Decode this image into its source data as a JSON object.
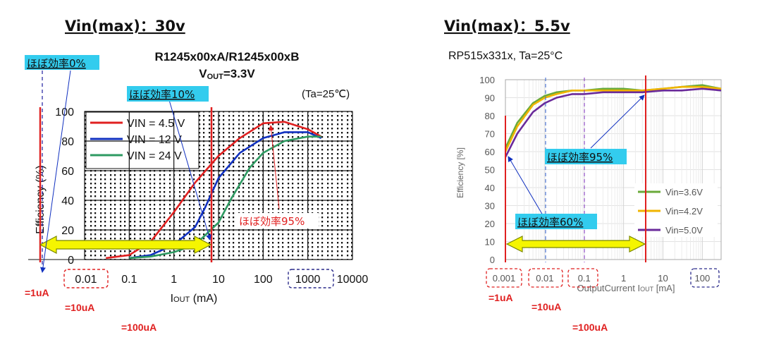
{
  "left": {
    "heading": "Vin(max)：30v",
    "title_line1": "R1245x00xA/R1245x00xB",
    "title_line2_prefix": "V",
    "title_line2_sub": "OUT",
    "title_line2_suffix": "=3.3V",
    "condition": "(Ta=25℃)",
    "label_0pct": "ほぼ効率0%",
    "label_10pct": "ほぼ効率10%",
    "label_95pct": "ほぼ効率95%",
    "note_1uA": "=1uA",
    "note_10uA": "=10uA",
    "note_100uA": "=100uA"
  },
  "right": {
    "heading": "Vin(max)：5.5v",
    "title": "RP515x331x, Ta=25°C",
    "label_95pct": "ほぼ効率95%",
    "label_60pct": "ほぼ効率60%",
    "note_1uA": "=1uA",
    "note_10uA": "=10uA",
    "note_100uA": "=100uA"
  },
  "colors": {
    "red": "#e02020",
    "blue": "#1030c0",
    "green": "#2e9a62",
    "cyan_label": "#33ccee",
    "arrow_fill": "#f5f500",
    "arrow_stroke": "#7a8800",
    "r_green": "#6aaa3a",
    "r_yellow": "#f0b400",
    "r_purple": "#6a2a9a"
  },
  "chart_data": [
    {
      "type": "line",
      "xscale": "log",
      "xlim": [
        0.01,
        10000
      ],
      "ylim": [
        0,
        100
      ],
      "xlabel_prefix": "I",
      "xlabel_sub": "OUT",
      "xlabel_suffix": " (mA)",
      "ylabel": "Efficiency (%)",
      "x_ticks": [
        "0.01",
        "0.1",
        "1",
        "10",
        "100",
        "1000",
        "10000"
      ],
      "x_tick_values": [
        0.01,
        0.1,
        1,
        10,
        100,
        1000,
        10000
      ],
      "y_ticks": [
        0,
        20,
        40,
        60,
        80,
        100
      ],
      "legend_position": "top-left",
      "series": [
        {
          "name": "VIN =  4.5 V",
          "color": "#e02020",
          "x": [
            0.03,
            0.1,
            0.3,
            1,
            3,
            10,
            30,
            100,
            300,
            1000,
            2000
          ],
          "y": [
            1,
            3,
            12,
            32,
            52,
            70,
            82,
            92,
            93,
            88,
            83
          ]
        },
        {
          "name": "VIN =  12 V",
          "color": "#1030c0",
          "x": [
            0.1,
            0.3,
            1,
            3,
            5,
            10,
            30,
            100,
            300,
            1000,
            2000
          ],
          "y": [
            1,
            3,
            10,
            22,
            35,
            55,
            72,
            82,
            86,
            86,
            82
          ]
        },
        {
          "name": "VIN =  24 V",
          "color": "#2e9a62",
          "x": [
            0.1,
            0.3,
            1,
            3,
            10,
            20,
            50,
            100,
            300,
            1000,
            2000
          ],
          "y": [
            1,
            2,
            5,
            10,
            25,
            42,
            62,
            72,
            80,
            83,
            83
          ]
        }
      ]
    },
    {
      "type": "line",
      "xscale": "log",
      "xlim": [
        0.001,
        300
      ],
      "ylim": [
        0,
        100
      ],
      "xlabel_prefix": "OutputCurrent  I",
      "xlabel_sub": "OUT",
      "xlabel_suffix": " [mA]",
      "ylabel": "Efficiency [%]",
      "x_ticks": [
        "0.001",
        "0.01",
        "0.1",
        "1",
        "10",
        "100"
      ],
      "x_tick_values": [
        0.001,
        0.01,
        0.1,
        1,
        10,
        100
      ],
      "y_ticks": [
        0,
        10,
        20,
        30,
        40,
        50,
        60,
        70,
        80,
        90,
        100
      ],
      "legend_position": "right",
      "series": [
        {
          "name": "Vin=3.6V",
          "color": "#6aaa3a",
          "x": [
            0.001,
            0.002,
            0.005,
            0.01,
            0.02,
            0.05,
            0.1,
            0.3,
            1,
            3,
            10,
            30,
            100,
            300
          ],
          "y": [
            62,
            76,
            87,
            91,
            93,
            94,
            94,
            95,
            95,
            94,
            95,
            96,
            97,
            95
          ]
        },
        {
          "name": "Vin=4.2V",
          "color": "#f0b400",
          "x": [
            0.001,
            0.002,
            0.005,
            0.01,
            0.02,
            0.05,
            0.1,
            0.3,
            1,
            3,
            10,
            30,
            100,
            300
          ],
          "y": [
            60,
            74,
            86,
            90,
            92,
            94,
            94,
            94,
            94,
            94,
            95,
            96,
            96,
            95
          ]
        },
        {
          "name": "Vin=5.0V",
          "color": "#6a2a9a",
          "x": [
            0.001,
            0.002,
            0.005,
            0.01,
            0.02,
            0.05,
            0.1,
            0.3,
            1,
            3,
            10,
            30,
            100,
            300
          ],
          "y": [
            57,
            70,
            82,
            87,
            90,
            92,
            92,
            93,
            93,
            93,
            94,
            94,
            95,
            94
          ]
        }
      ]
    }
  ]
}
